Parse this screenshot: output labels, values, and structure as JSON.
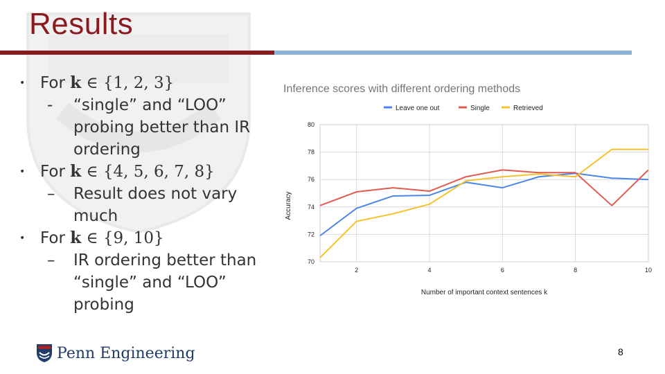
{
  "slide": {
    "title": "Results",
    "page_number": "8",
    "logo_text": "Penn Engineering"
  },
  "bullets": [
    {
      "prefix": "For ",
      "k": "k",
      "set_text": " ∈ {1, 2, 3}",
      "sub": [
        "“single” and “LOO”",
        "probing better than IR",
        "ordering"
      ],
      "sub_marker": "-"
    },
    {
      "prefix": "For ",
      "k": "k",
      "set_text": " ∈ {4, 5, 6, 7, 8}",
      "sub": [
        "Result does not vary",
        "much"
      ],
      "sub_marker": "–"
    },
    {
      "prefix": "For ",
      "k": "k",
      "set_text": " ∈ {9, 10}",
      "sub": [
        "IR ordering better than",
        "“single” and “LOO”",
        "probing"
      ],
      "sub_marker": "–"
    }
  ],
  "bullet_marker": "•",
  "chart_data": {
    "type": "line",
    "title": "Inference scores with different ordering methods",
    "xlabel": "Number of important context sentences k",
    "ylabel": "Accuracy",
    "xlim": [
      1,
      10
    ],
    "ylim": [
      70,
      80
    ],
    "xticks": [
      2,
      4,
      6,
      8,
      10
    ],
    "yticks": [
      70,
      72,
      74,
      76,
      78,
      80
    ],
    "grid": true,
    "legend_position": "top",
    "x": [
      1,
      2,
      3,
      4,
      5,
      6,
      7,
      8,
      9,
      10
    ],
    "series": [
      {
        "name": "Leave one out",
        "color": "#4a86e8",
        "values": [
          71.9,
          73.9,
          74.8,
          74.85,
          75.8,
          75.4,
          76.2,
          76.45,
          76.1,
          76.0
        ]
      },
      {
        "name": "Single",
        "color": "#e05a4f",
        "values": [
          74.1,
          75.1,
          75.4,
          75.15,
          76.2,
          76.7,
          76.5,
          76.5,
          74.1,
          76.7
        ]
      },
      {
        "name": "Retrieved",
        "color": "#f5c12c",
        "values": [
          70.3,
          72.95,
          73.5,
          74.2,
          75.9,
          76.2,
          76.4,
          76.2,
          78.2,
          78.2
        ]
      }
    ]
  }
}
